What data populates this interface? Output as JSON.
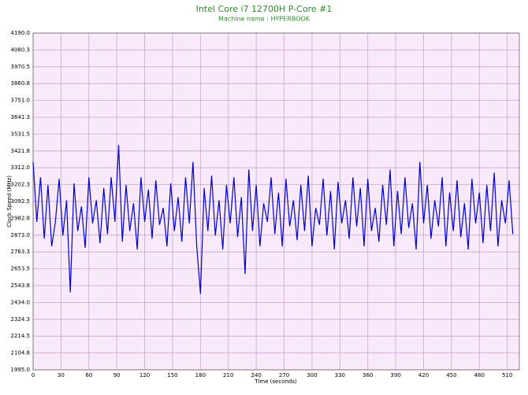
{
  "chart_data": {
    "type": "line",
    "title": "Intel Core i7 12700H P-Core #1",
    "subtitle": "Machine name : HYPERBOOK",
    "x_label": "Time (seconds)",
    "y_label": "Clock Speed (MHz)",
    "grid": true,
    "xlim": [
      0,
      523
    ],
    "ylim": [
      1995,
      4190
    ],
    "xticks": [
      0,
      30,
      60,
      90,
      120,
      150,
      180,
      210,
      240,
      270,
      300,
      330,
      360,
      390,
      420,
      450,
      480,
      510
    ],
    "yticks": [
      {
        "value": 1995,
        "label": "1995.0"
      },
      2104.8,
      2214.5,
      2324.3,
      {
        "value": 2434,
        "label": "2434.0"
      },
      2543.8,
      2653.5,
      2763.3,
      {
        "value": 2873,
        "label": "2873.0"
      },
      2982.8,
      3092.5,
      3202.3,
      {
        "value": 3312,
        "label": "3312.0"
      },
      3421.8,
      3531.5,
      3641.3,
      {
        "value": 3751,
        "label": "3751.0"
      },
      3860.8,
      3970.5,
      4080.3,
      {
        "value": 4190,
        "label": "4190.0"
      }
    ],
    "x": [
      0,
      4,
      8,
      12,
      16,
      20,
      24,
      28,
      32,
      36,
      40,
      44,
      48,
      52,
      56,
      60,
      64,
      68,
      72,
      76,
      80,
      84,
      88,
      92,
      96,
      100,
      104,
      108,
      112,
      116,
      120,
      124,
      128,
      132,
      136,
      140,
      144,
      148,
      152,
      156,
      160,
      164,
      168,
      172,
      176,
      180,
      184,
      188,
      192,
      196,
      200,
      204,
      208,
      212,
      216,
      220,
      224,
      228,
      232,
      236,
      240,
      244,
      248,
      252,
      256,
      260,
      264,
      268,
      272,
      276,
      280,
      284,
      288,
      292,
      296,
      300,
      304,
      308,
      312,
      316,
      320,
      324,
      328,
      332,
      336,
      340,
      344,
      348,
      352,
      356,
      360,
      364,
      368,
      372,
      376,
      380,
      384,
      388,
      392,
      396,
      400,
      404,
      408,
      412,
      416,
      420,
      424,
      428,
      432,
      436,
      440,
      444,
      448,
      452,
      456,
      460,
      464,
      468,
      472,
      476,
      480,
      484,
      488,
      492,
      496,
      500,
      504,
      508,
      512,
      516
    ],
    "series": [
      {
        "name": "P-Core #1",
        "color": "#0000cc",
        "values": [
          3350,
          2960,
          3250,
          2850,
          3200,
          2800,
          2960,
          3240,
          2870,
          3100,
          2500,
          3210,
          2900,
          3060,
          2790,
          3250,
          2950,
          3100,
          2820,
          3180,
          2880,
          3250,
          2960,
          3460,
          2830,
          3200,
          2900,
          3080,
          2780,
          3250,
          2960,
          3170,
          2850,
          3230,
          2940,
          3050,
          2800,
          3210,
          2900,
          3120,
          2830,
          3250,
          2950,
          3350,
          2800,
          2490,
          3180,
          2900,
          3260,
          2870,
          3100,
          2780,
          3200,
          2950,
          3250,
          2860,
          3120,
          2620,
          3300,
          2900,
          3200,
          2800,
          3080,
          2960,
          3250,
          2880,
          3150,
          2800,
          3240,
          2930,
          3100,
          2840,
          3200,
          2900,
          3260,
          2800,
          3050,
          2940,
          3240,
          2870,
          3160,
          2780,
          3220,
          2950,
          3100,
          2850,
          3250,
          2930,
          3180,
          2800,
          3240,
          2900,
          3050,
          2830,
          3200,
          2940,
          3300,
          2800,
          3160,
          2880,
          3250,
          2920,
          3080,
          2780,
          3350,
          2950,
          3200,
          2850,
          3100,
          2930,
          3250,
          2800,
          3150,
          2900,
          3230,
          2860,
          3080,
          2780,
          3240,
          2950,
          3150,
          2820,
          3200,
          2900,
          3280,
          2800,
          3100,
          2950,
          3230,
          2880
        ]
      }
    ]
  }
}
